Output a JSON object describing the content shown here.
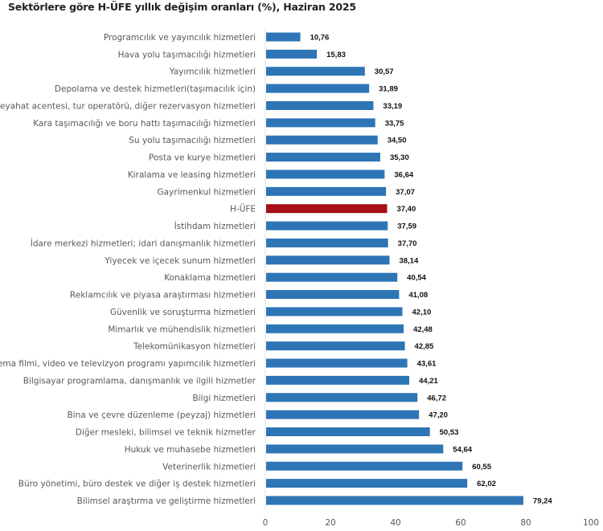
{
  "chart_data": {
    "type": "bar",
    "orientation": "horizontal",
    "title": "Sektörlere göre H-ÜFE yıllık değişim oranları (%), Haziran 2025",
    "categories": [
      "Programcılık ve yayıncılık hizmetleri",
      "Hava yolu taşımacılığı hizmetleri",
      "Yayımcılık hizmetleri",
      "Depolama ve destek hizmetleri(taşımacılık için)",
      "Seyahat acentesi, tur operatörü, diğer rezervasyon hizmetleri",
      "Kara taşımacılığı ve boru hattı taşımacılığı hizmetleri",
      "Su yolu taşımacılığı hizmetleri",
      "Posta ve kurye hizmetleri",
      "Kiralama ve leasing hizmetleri",
      "Gayrimenkul hizmetleri",
      "H-ÜFE",
      "İstihdam hizmetleri",
      "İdare merkezi hizmetleri; idari danışmanlık hizmetleri",
      "Yiyecek ve içecek sunum hizmetleri",
      "Konaklama hizmetleri",
      "Reklamcılık ve piyasa araştırması hizmetleri",
      "Güvenlik ve soruşturma hizmetleri",
      "Mimarlık ve mühendislik hizmetleri",
      "Telekomünikasyon hizmetleri",
      "Sinema filmi, video ve televizyon programı yapımcılık hizmetleri",
      "Bilgisayar programlama, danışmanlık ve ilgili hizmetler",
      "Bilgi hizmetleri",
      "Bina ve çevre düzenleme (peyzaj) hizmetleri",
      "Diğer mesleki, bilimsel ve teknik hizmetler",
      "Hukuk ve muhasebe hizmetleri",
      "Veterinerlik hizmetleri",
      "Büro yönetimi, büro destek ve diğer iş destek hizmetleri",
      "Bilimsel araştırma ve geliştirme hizmetleri"
    ],
    "values": [
      10.76,
      15.83,
      30.57,
      31.89,
      33.19,
      33.75,
      34.5,
      35.3,
      36.64,
      37.07,
      37.4,
      37.59,
      37.7,
      38.14,
      40.54,
      41.08,
      42.1,
      42.48,
      42.85,
      43.61,
      44.21,
      46.72,
      47.2,
      50.53,
      54.64,
      60.55,
      62.02,
      79.24
    ],
    "value_labels": [
      "10,76",
      "15,83",
      "30,57",
      "31,89",
      "33,19",
      "33,75",
      "34,50",
      "35,30",
      "36,64",
      "37,07",
      "37,40",
      "37,59",
      "37,70",
      "38,14",
      "40,54",
      "41,08",
      "42,10",
      "42,48",
      "42,85",
      "43,61",
      "44,21",
      "46,72",
      "47,20",
      "50,53",
      "54,64",
      "60,55",
      "62,02",
      "79,24"
    ],
    "highlight_category": "H-ÜFE",
    "xlim": [
      0,
      100
    ],
    "xticks": [
      "0",
      "20",
      "40",
      "60",
      "80",
      "100"
    ],
    "xlabel": "",
    "ylabel": "",
    "grid": false,
    "legend": "none",
    "colors": {
      "bar": "#2E75B6",
      "highlight": "#A50F15"
    }
  }
}
